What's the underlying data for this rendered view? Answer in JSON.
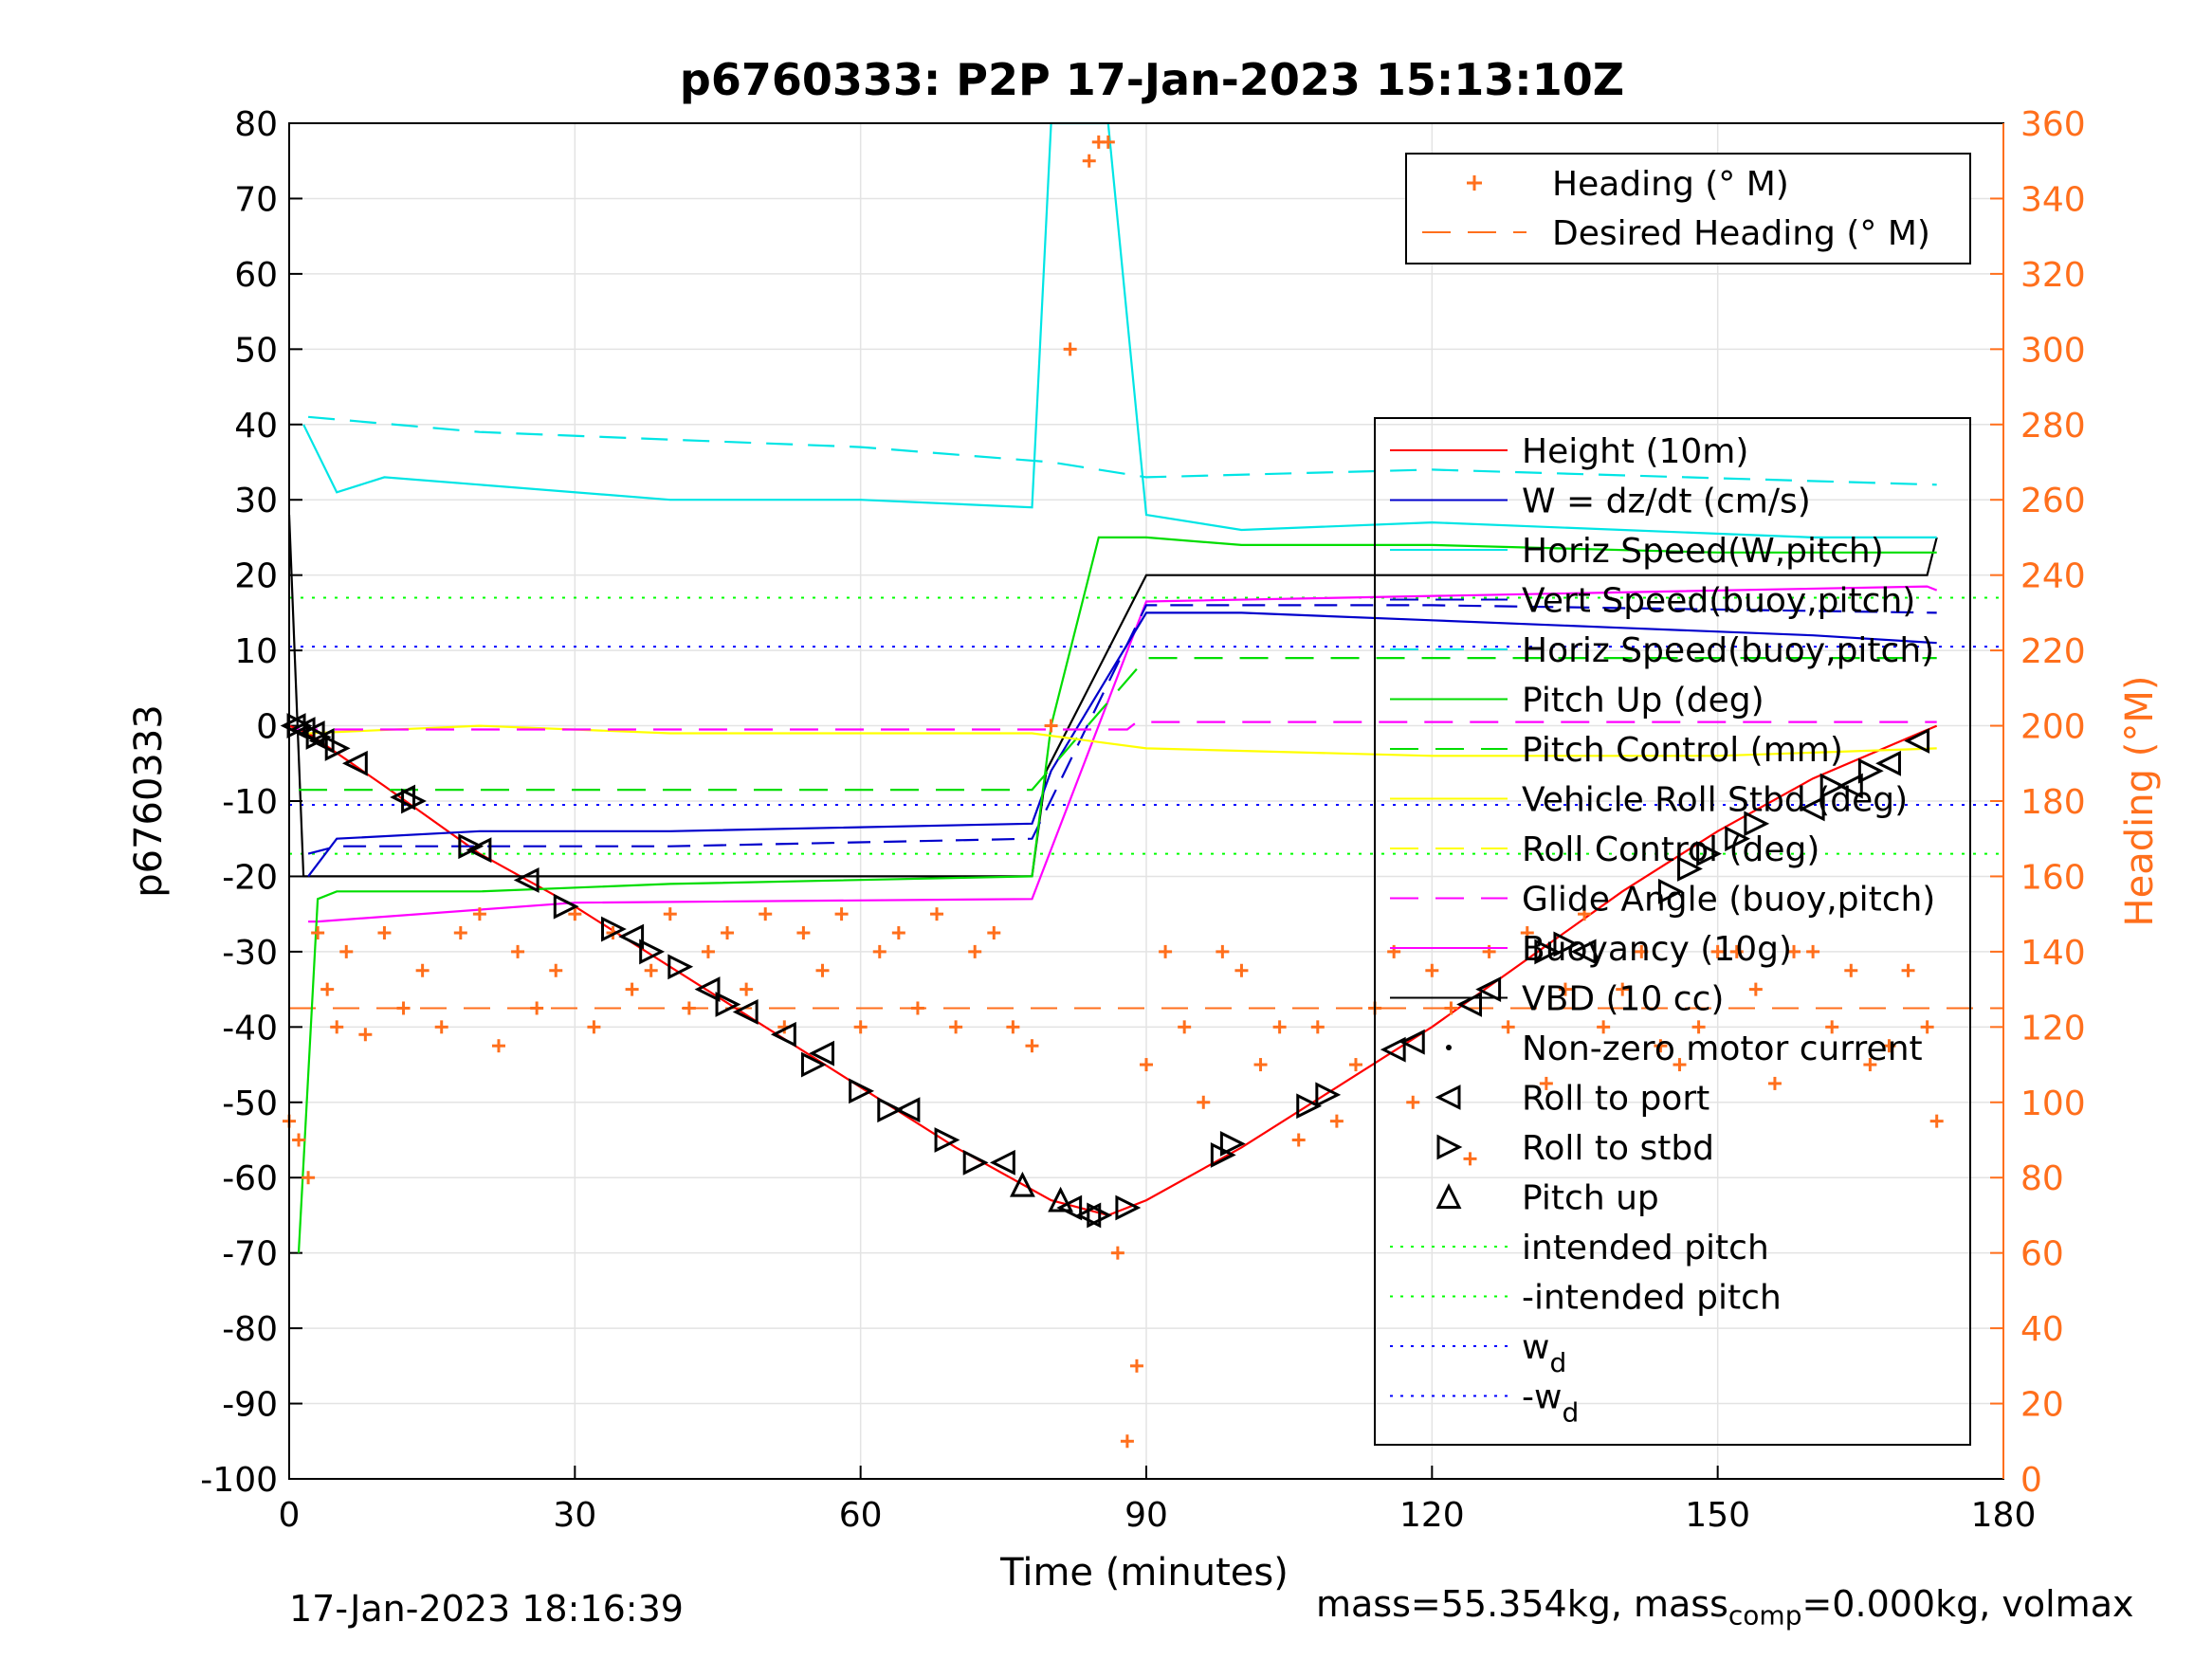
{
  "chart_data": {
    "type": "line",
    "title": "p6760333: P2P 17-Jan-2023 15:13:10Z",
    "xlabel": "Time (minutes)",
    "ylabel": "p6760333",
    "y2label": "Heading (°M)",
    "xlim": [
      0,
      180
    ],
    "ylim": [
      -100,
      80
    ],
    "y2lim": [
      0,
      360
    ],
    "xticks": [
      "0",
      "30",
      "60",
      "90",
      "120",
      "150",
      "180"
    ],
    "yticks": [
      "80",
      "70",
      "60",
      "50",
      "40",
      "30",
      "20",
      "10",
      "0",
      "-10",
      "-20",
      "-30",
      "-40",
      "-50",
      "-60",
      "-70",
      "-80",
      "-90",
      "-100"
    ],
    "y2ticks": [
      "360",
      "340",
      "320",
      "300",
      "280",
      "260",
      "240",
      "220",
      "200",
      "180",
      "160",
      "140",
      "120",
      "100",
      "80",
      "60",
      "40",
      "20",
      "0"
    ],
    "grid": true,
    "colors": {
      "height": "#ff0000",
      "w": "#0000cc",
      "horiz_speed": "#00e5e5",
      "pitch": "#00dd00",
      "roll": "#ffff00",
      "glide": "#ff00ff",
      "vbd": "#000000",
      "heading": "#ff6f1c",
      "wd": "#0000ff"
    },
    "legend_right": [
      {
        "label": "Heading (° M)",
        "style": "plus",
        "color": "#ff6f1c"
      },
      {
        "label": "Desired Heading (° M)",
        "style": "dash",
        "color": "#ff6f1c"
      }
    ],
    "legend_main": [
      {
        "label": "Height (10m)",
        "style": "solid",
        "color": "#ff0000"
      },
      {
        "label": "W = dz/dt (cm/s)",
        "style": "solid",
        "color": "#0000cc"
      },
      {
        "label": "Horiz Speed(W,pitch)",
        "style": "solid",
        "color": "#00e5e5"
      },
      {
        "label": "Vert Speed(buoy,pitch)",
        "style": "dash",
        "color": "#0000cc"
      },
      {
        "label": "Horiz Speed(buoy,pitch)",
        "style": "dash",
        "color": "#00e5e5"
      },
      {
        "label": "Pitch Up (deg)",
        "style": "solid",
        "color": "#00dd00"
      },
      {
        "label": "Pitch Control (mm)",
        "style": "dash",
        "color": "#00dd00"
      },
      {
        "label": "Vehicle Roll Stbd (deg)",
        "style": "solid",
        "color": "#ffff00"
      },
      {
        "label": "Roll Control (deg)",
        "style": "dash",
        "color": "#ffff00"
      },
      {
        "label": "Glide Angle (buoy,pitch)",
        "style": "dash",
        "color": "#ff00ff"
      },
      {
        "label": "Buoyancy (10g)",
        "style": "solid",
        "color": "#ff00ff"
      },
      {
        "label": "VBD (10 cc)",
        "style": "solid",
        "color": "#000000"
      },
      {
        "label": "Non-zero motor current",
        "style": "dot",
        "color": "#000000"
      },
      {
        "label": "Roll to port",
        "style": "tri-left",
        "color": "#000000"
      },
      {
        "label": "Roll to stbd",
        "style": "tri-right",
        "color": "#000000"
      },
      {
        "label": "Pitch up",
        "style": "tri-up",
        "color": "#000000"
      },
      {
        "label": "intended pitch",
        "style": "dotted",
        "color": "#00ff00"
      },
      {
        "label": "-intended pitch",
        "style": "dotted",
        "color": "#00ff00"
      },
      {
        "label": "w",
        "sub": "d",
        "style": "dotted",
        "color": "#0000ff"
      },
      {
        "label": "-w",
        "sub": "d",
        "style": "dotted",
        "color": "#0000ff"
      }
    ],
    "reference_lines": {
      "intended_pitch": 17,
      "neg_intended_pitch": -17,
      "wd": 10.5,
      "neg_wd": -10.5,
      "desired_heading_deg": 125,
      "glide_angle_dive": -0.5,
      "glide_angle_climb": 0.5
    },
    "series": [
      {
        "name": "Height (10m)",
        "x": [
          0,
          2,
          10,
          20,
          30,
          40,
          50,
          60,
          70,
          80,
          86,
          90,
          100,
          110,
          120,
          130,
          140,
          150,
          160,
          173
        ],
        "y": [
          0,
          -1,
          -8,
          -17,
          -24,
          -32,
          -40,
          -48,
          -56,
          -63,
          -65,
          -63,
          -56,
          -48,
          -40,
          -31,
          -22,
          -14,
          -7,
          0
        ]
      },
      {
        "name": "VBD (10 cc)",
        "x": [
          0,
          1.5,
          2,
          78,
          79.5,
          90,
          172,
          173
        ],
        "y": [
          28,
          -20,
          -20,
          -20,
          -6,
          20,
          20,
          25
        ]
      },
      {
        "name": "Buoyancy (10g)",
        "x": [
          2,
          3,
          30,
          78,
          90,
          172,
          173
        ],
        "y": [
          -26,
          -26,
          -23.5,
          -23,
          16.5,
          18.5,
          18
        ]
      },
      {
        "name": "W = dz/dt (cm/s)",
        "x": [
          2,
          5,
          20,
          40,
          78,
          80,
          90,
          100,
          120,
          140,
          160,
          173
        ],
        "y": [
          -20,
          -15,
          -14,
          -14,
          -13,
          -6,
          15,
          15,
          14,
          13,
          12,
          11
        ]
      },
      {
        "name": "Vert Speed(buoy,pitch)",
        "x": [
          2,
          5,
          40,
          78,
          90,
          120,
          173
        ],
        "y": [
          -17,
          -16,
          -16,
          -15,
          16,
          16,
          15
        ]
      },
      {
        "name": "Horiz Speed(W,pitch)",
        "x": [
          1.5,
          5,
          10,
          20,
          40,
          60,
          78,
          80,
          86,
          90,
          100,
          120,
          140,
          160,
          173
        ],
        "y": [
          40,
          31,
          33,
          32,
          30,
          30,
          29,
          80,
          80,
          28,
          26,
          27,
          26,
          25,
          25
        ]
      },
      {
        "name": "Horiz Speed(buoy,pitch)",
        "x": [
          2,
          20,
          40,
          60,
          80,
          90,
          120,
          173
        ],
        "y": [
          41,
          39,
          38,
          37,
          35,
          33,
          34,
          32
        ]
      },
      {
        "name": "Pitch Up (deg)",
        "x": [
          1,
          3,
          5,
          20,
          40,
          78,
          80,
          85,
          90,
          100,
          120,
          150,
          173
        ],
        "y": [
          -70,
          -23,
          -22,
          -22,
          -21,
          -20,
          0,
          25,
          25,
          24,
          24,
          23,
          23
        ]
      },
      {
        "name": "Pitch Control (mm)",
        "x": [
          1,
          78,
          90,
          173
        ],
        "y": [
          -8.5,
          -8.5,
          9,
          9
        ]
      },
      {
        "name": "Vehicle Roll Stbd (deg)",
        "x": [
          2,
          20,
          40,
          60,
          78,
          90,
          120,
          150,
          173
        ],
        "y": [
          -1,
          0,
          -1,
          -1,
          -1,
          -3,
          -4,
          -4,
          -3
        ]
      },
      {
        "name": "Glide Angle (buoy,pitch)",
        "x": [
          0,
          88,
          89,
          173
        ],
        "y": [
          -0.5,
          -0.5,
          0.5,
          0.5
        ]
      }
    ],
    "heading": {
      "name": "Heading (° M)",
      "desired": 125,
      "points_x": [
        0,
        1,
        2,
        3,
        4,
        5,
        6,
        8,
        10,
        12,
        14,
        16,
        18,
        20,
        22,
        24,
        26,
        28,
        30,
        32,
        34,
        36,
        38,
        40,
        42,
        44,
        46,
        48,
        50,
        52,
        54,
        56,
        58,
        60,
        62,
        64,
        66,
        68,
        70,
        72,
        74,
        76,
        78,
        80,
        82,
        84,
        85,
        86,
        87,
        88,
        89,
        90,
        92,
        94,
        96,
        98,
        100,
        102,
        104,
        106,
        108,
        110,
        112,
        114,
        116,
        118,
        120,
        122,
        124,
        126,
        128,
        130,
        132,
        134,
        136,
        138,
        140,
        142,
        144,
        146,
        148,
        150,
        152,
        154,
        156,
        158,
        160,
        162,
        164,
        166,
        168,
        170,
        172,
        173
      ],
      "points_y": [
        95,
        90,
        80,
        145,
        130,
        120,
        140,
        118,
        145,
        125,
        135,
        120,
        145,
        150,
        115,
        140,
        125,
        135,
        150,
        120,
        145,
        130,
        135,
        150,
        125,
        140,
        145,
        130,
        150,
        120,
        145,
        135,
        150,
        120,
        140,
        145,
        125,
        150,
        120,
        140,
        145,
        120,
        115,
        200,
        300,
        350,
        355,
        355,
        60,
        10,
        30,
        110,
        140,
        120,
        100,
        140,
        135,
        110,
        120,
        90,
        120,
        95,
        110,
        125,
        140,
        100,
        135,
        125,
        85,
        140,
        120,
        145,
        105,
        130,
        150,
        120,
        130,
        140,
        115,
        110,
        120,
        140,
        140,
        130,
        105,
        140,
        140,
        120,
        135,
        110,
        115,
        135,
        120,
        95
      ]
    },
    "markers": {
      "roll_to_port": {
        "x": [
          0.5,
          1.5,
          2.5,
          3.5,
          7,
          12,
          20,
          25,
          36,
          44,
          48,
          52,
          56,
          65,
          75,
          82,
          84,
          116,
          118,
          124,
          126,
          136,
          160,
          164,
          168,
          171
        ],
        "y": [
          0,
          -0.5,
          -1,
          -2,
          -5,
          -9.5,
          -16.5,
          -20.5,
          -28,
          -35,
          -38,
          -41,
          -43.5,
          -51,
          -58,
          -64,
          -65,
          -43,
          -42,
          -37,
          -35,
          -30,
          -11,
          -8,
          -5,
          -2
        ]
      },
      "roll_to_stbd": {
        "x": [
          1,
          3,
          5,
          13,
          19,
          29,
          34,
          38,
          41,
          46,
          55,
          60,
          63,
          69,
          72,
          85,
          88,
          98,
          99,
          107,
          109,
          132,
          134,
          145,
          147,
          149,
          152,
          154,
          162,
          166
        ],
        "y": [
          0,
          -1.5,
          -3,
          -10,
          -16,
          -24,
          -27,
          -30,
          -32,
          -37,
          -45,
          -48.5,
          -51,
          -55,
          -58,
          -65,
          -64,
          -57,
          -55.5,
          -50.5,
          -49,
          -30,
          -29,
          -22,
          -19,
          -17,
          -15,
          -13,
          -8,
          -6
        ]
      },
      "pitch_up": {
        "x": [
          77,
          81
        ],
        "y": [
          -61,
          -63
        ]
      }
    }
  },
  "footer": {
    "timestamp": "17-Jan-2023 18:16:39",
    "mass_prefix": "mass=55.354kg, mass",
    "mass_sub": "comp",
    "mass_suffix": "=0.000kg, volmax"
  }
}
